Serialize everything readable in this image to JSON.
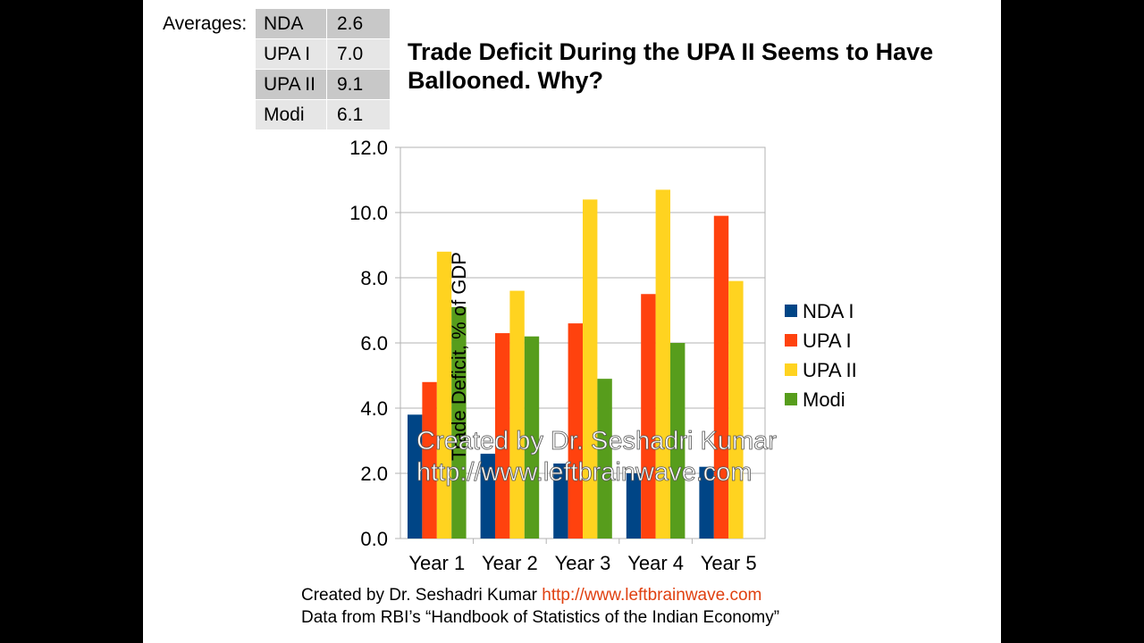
{
  "averages": {
    "label": "Averages:",
    "rows": [
      {
        "name": "NDA",
        "value": "2.6"
      },
      {
        "name": "UPA I",
        "value": "7.0"
      },
      {
        "name": "UPA II",
        "value": "9.1"
      },
      {
        "name": "Modi",
        "value": "6.1"
      }
    ]
  },
  "title": "Trade Deficit During the UPA II Seems to Have Ballooned. Why?",
  "watermark": {
    "line1": "Created by Dr. Seshadri Kumar",
    "line2": "http://www.leftbrainwave.com"
  },
  "footer": {
    "line1_text": "Created by Dr. Seshadri Kumar",
    "line1_url": "http://www.leftbrainwave.com",
    "line2": "Data from RBI’s “Handbook of Statistics of the Indian Economy”"
  },
  "chart_data": {
    "type": "bar",
    "categories": [
      "Year 1",
      "Year 2",
      "Year 3",
      "Year 4",
      "Year 5"
    ],
    "ylabel": "Trade Deficit, % of GDP",
    "ylim": [
      0,
      12
    ],
    "yticks": [
      "0.0",
      "2.0",
      "4.0",
      "6.0",
      "8.0",
      "10.0",
      "12.0"
    ],
    "grid": true,
    "legend_position": "right",
    "series": [
      {
        "name": "NDA I",
        "color": "#004586",
        "values": [
          3.8,
          2.6,
          2.3,
          2.0,
          2.2
        ]
      },
      {
        "name": "UPA I",
        "color": "#ff420e",
        "values": [
          4.8,
          6.3,
          6.6,
          7.5,
          9.9
        ]
      },
      {
        "name": "UPA II",
        "color": "#ffd320",
        "values": [
          8.8,
          7.6,
          10.4,
          10.7,
          7.9
        ]
      },
      {
        "name": "Modi",
        "color": "#579d1c",
        "values": [
          7.1,
          6.2,
          4.9,
          6.0,
          null
        ]
      }
    ]
  }
}
